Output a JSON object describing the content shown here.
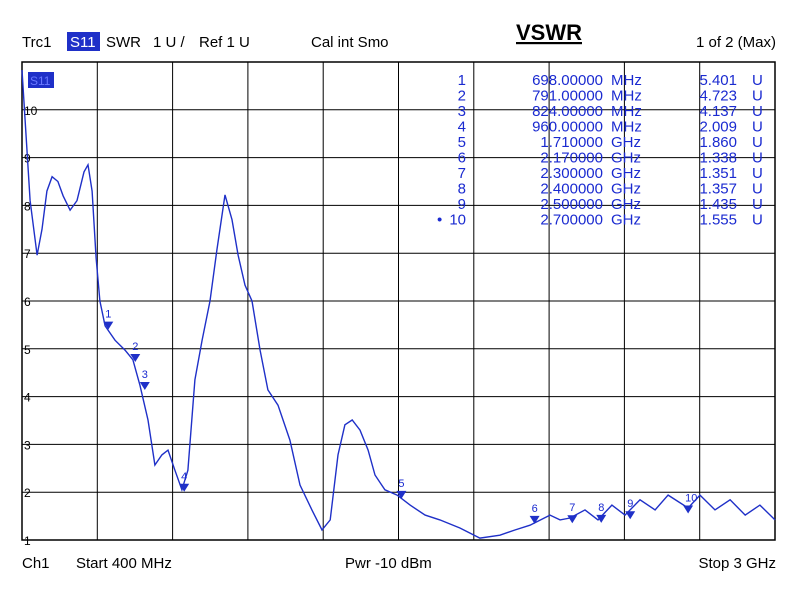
{
  "chart_data": {
    "type": "line",
    "title": "VSWR",
    "trace_info": [
      "Trc1",
      "S11",
      "SWR",
      "1 U /",
      "Ref 1 U",
      "Cal int Smo"
    ],
    "page_info": "1 of 2 (Max)",
    "footer": [
      "Ch1",
      "Start 400 MHz",
      "Pwr -10 dBm",
      "Stop 3 GHz"
    ],
    "trace_tag": "S11",
    "xlim": [
      400,
      3000
    ],
    "xticks": [
      400,
      660,
      920,
      1180,
      1440,
      1700,
      1960,
      2220,
      2480,
      2740,
      3000
    ],
    "ylim": [
      1,
      11
    ],
    "yticks": [
      1,
      2,
      3,
      4,
      5,
      6,
      7,
      8,
      9,
      10
    ],
    "grid": true,
    "series": [
      {
        "name": "S11",
        "color": "#1f30c8",
        "x": [
          400,
          428,
          452,
          469,
          486,
          504,
          524,
          542,
          566,
          590,
          614,
          628,
          642,
          656,
          669,
          687,
          721,
          756,
          783,
          807,
          835,
          859,
          883,
          904,
          928,
          952,
          973,
          997,
          1022,
          1049,
          1073,
          1101,
          1125,
          1146,
          1170,
          1194,
          1222,
          1249,
          1284,
          1325,
          1360,
          1401,
          1436,
          1464,
          1491,
          1515,
          1540,
          1567,
          1595,
          1619,
          1653,
          1695,
          1740,
          1792,
          1843,
          1912,
          1981,
          2050,
          2102,
          2154,
          2171,
          2223,
          2258,
          2292,
          2344,
          2389,
          2437,
          2482,
          2534,
          2586,
          2631,
          2700,
          2741,
          2793,
          2845,
          2897,
          2948,
          3000
        ],
        "values": [
          10.83,
          8.1,
          6.96,
          7.5,
          8.3,
          8.6,
          8.5,
          8.2,
          7.9,
          8.1,
          8.7,
          8.85,
          8.3,
          6.9,
          6.0,
          5.48,
          5.18,
          4.97,
          4.77,
          4.24,
          3.51,
          2.57,
          2.78,
          2.88,
          2.46,
          2.05,
          2.46,
          4.35,
          5.18,
          6.0,
          7.07,
          8.22,
          7.7,
          6.96,
          6.33,
          6.0,
          4.97,
          4.14,
          3.82,
          3.09,
          2.15,
          1.63,
          1.21,
          1.42,
          2.78,
          3.41,
          3.51,
          3.3,
          2.88,
          2.36,
          2.05,
          1.94,
          1.73,
          1.52,
          1.42,
          1.25,
          1.04,
          1.1,
          1.21,
          1.31,
          1.36,
          1.52,
          1.42,
          1.46,
          1.63,
          1.42,
          1.73,
          1.52,
          1.84,
          1.63,
          1.94,
          1.67,
          1.94,
          1.63,
          1.84,
          1.52,
          1.73,
          1.42
        ]
      }
    ],
    "markers": {
      "names": [
        "1",
        "2",
        "3",
        "4",
        "5",
        "6",
        "7",
        "8",
        "9",
        "10"
      ],
      "active": 9,
      "active_symbol": "•",
      "x": [
        698,
        791,
        824,
        960,
        1710,
        2170,
        2300,
        2400,
        2500,
        2700
      ],
      "x_labels": [
        "698.00000",
        "791.00000",
        "824.00000",
        "960.00000",
        "1.710000",
        "2.170000",
        "2.300000",
        "2.400000",
        "2.500000",
        "2.700000"
      ],
      "x_units": [
        "MHz",
        "MHz",
        "MHz",
        "MHz",
        "GHz",
        "GHz",
        "GHz",
        "GHz",
        "GHz",
        "GHz"
      ],
      "values": [
        5.401,
        4.723,
        4.137,
        2.009,
        1.86,
        1.338,
        1.351,
        1.357,
        1.435,
        1.555
      ],
      "value_labels": [
        "5.401",
        "4.723",
        "4.137",
        "2.009",
        "1.860",
        "1.338",
        "1.351",
        "1.357",
        "1.435",
        "1.555"
      ],
      "unit": "U"
    }
  }
}
